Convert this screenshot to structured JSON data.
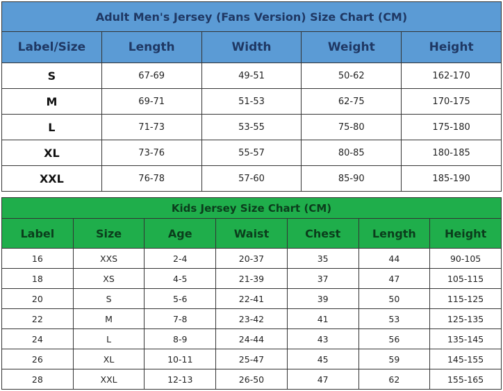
{
  "adult": {
    "title": "Adult Men's Jersey (Fans Version) Size Chart (CM)",
    "colors": {
      "header": "#5b9bd5"
    },
    "headers": [
      "Label/Size",
      "Length",
      "Width",
      "Weight",
      "Height"
    ],
    "rows": [
      [
        "S",
        "67-69",
        "49-51",
        "50-62",
        "162-170"
      ],
      [
        "M",
        "69-71",
        "51-53",
        "62-75",
        "170-175"
      ],
      [
        "L",
        "71-73",
        "53-55",
        "75-80",
        "175-180"
      ],
      [
        "XL",
        "73-76",
        "55-57",
        "80-85",
        "180-185"
      ],
      [
        "XXL",
        "76-78",
        "57-60",
        "85-90",
        "185-190"
      ]
    ]
  },
  "kids": {
    "title": "Kids Jersey Size Chart (CM)",
    "colors": {
      "header": "#1fae4b"
    },
    "headers": [
      "Label",
      "Size",
      "Age",
      "Waist",
      "Chest",
      "Length",
      "Height"
    ],
    "rows": [
      [
        "16",
        "XXS",
        "2-4",
        "20-37",
        "35",
        "44",
        "90-105"
      ],
      [
        "18",
        "XS",
        "4-5",
        "21-39",
        "37",
        "47",
        "105-115"
      ],
      [
        "20",
        "S",
        "5-6",
        "22-41",
        "39",
        "50",
        "115-125"
      ],
      [
        "22",
        "M",
        "7-8",
        "23-42",
        "41",
        "53",
        "125-135"
      ],
      [
        "24",
        "L",
        "8-9",
        "24-44",
        "43",
        "56",
        "135-145"
      ],
      [
        "26",
        "XL",
        "10-11",
        "25-47",
        "45",
        "59",
        "145-155"
      ],
      [
        "28",
        "XXL",
        "12-13",
        "26-50",
        "47",
        "62",
        "155-165"
      ]
    ]
  }
}
